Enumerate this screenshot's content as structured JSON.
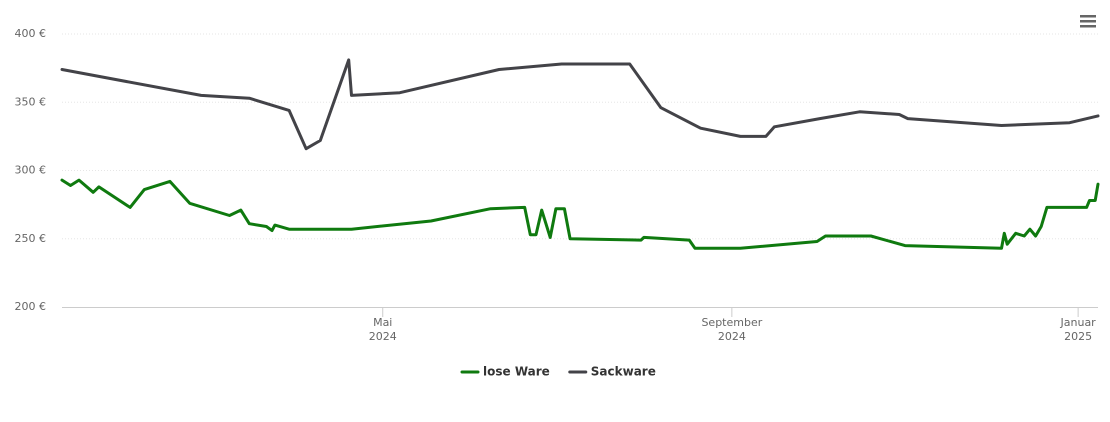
{
  "chart_data": {
    "type": "line",
    "xlim": [
      "2024-01-09",
      "2025-01-08"
    ],
    "xticks": [
      {
        "value": "2024-05-01",
        "label": [
          "Mai",
          "2024"
        ]
      },
      {
        "value": "2024-09-01",
        "label": [
          "September",
          "2024"
        ]
      },
      {
        "value": "2025-01-01",
        "label": [
          "Januar",
          "2025"
        ]
      }
    ],
    "ylim": [
      200,
      400
    ],
    "yticks": [
      {
        "value": 200,
        "label": "200 €"
      },
      {
        "value": 250,
        "label": "250 €"
      },
      {
        "value": 300,
        "label": "300 €"
      },
      {
        "value": 350,
        "label": "350 €"
      },
      {
        "value": 400,
        "label": "400 €"
      }
    ],
    "grid": true,
    "legend": "bottom",
    "series": [
      {
        "name": "lose Ware",
        "color": "#0f7a0f",
        "x": [
          "2024-01-09",
          "2024-01-12",
          "2024-01-15",
          "2024-01-20",
          "2024-01-22",
          "2024-02-02",
          "2024-02-07",
          "2024-02-16",
          "2024-02-23",
          "2024-03-08",
          "2024-03-12",
          "2024-03-15",
          "2024-03-21",
          "2024-03-23",
          "2024-03-24",
          "2024-03-29",
          "2024-04-20",
          "2024-05-18",
          "2024-06-08",
          "2024-06-20",
          "2024-06-22",
          "2024-06-24",
          "2024-06-26",
          "2024-06-29",
          "2024-07-01",
          "2024-07-04",
          "2024-07-06",
          "2024-07-31",
          "2024-08-01",
          "2024-08-17",
          "2024-08-19",
          "2024-09-04",
          "2024-10-01",
          "2024-10-04",
          "2024-10-20",
          "2024-11-01",
          "2024-12-05",
          "2024-12-06",
          "2024-12-07",
          "2024-12-10",
          "2024-12-13",
          "2024-12-15",
          "2024-12-17",
          "2024-12-19",
          "2024-12-21",
          "2025-01-04",
          "2025-01-05",
          "2025-01-07",
          "2025-01-08"
        ],
        "values": [
          293,
          289,
          293,
          284,
          288,
          273,
          286,
          292,
          276,
          267,
          271,
          261,
          259,
          256,
          260,
          257,
          257,
          263,
          272,
          273,
          253,
          253,
          271,
          251,
          272,
          272,
          250,
          249,
          251,
          249,
          243,
          243,
          248,
          252,
          252,
          245,
          243,
          254,
          246,
          254,
          252,
          257,
          252,
          259,
          273,
          273,
          278,
          278,
          290
        ]
      },
      {
        "name": "Sackware",
        "color": "#434348",
        "x": [
          "2024-01-09",
          "2024-02-27",
          "2024-03-15",
          "2024-03-29",
          "2024-04-04",
          "2024-04-09",
          "2024-04-19",
          "2024-04-20",
          "2024-05-07",
          "2024-06-11",
          "2024-07-03",
          "2024-07-27",
          "2024-08-07",
          "2024-08-21",
          "2024-09-04",
          "2024-09-13",
          "2024-09-16",
          "2024-10-02",
          "2024-10-16",
          "2024-10-30",
          "2024-11-02",
          "2024-12-05",
          "2024-12-29",
          "2025-01-08"
        ],
        "values": [
          374,
          355,
          353,
          344,
          316,
          322,
          381,
          355,
          357,
          374,
          378,
          378,
          346,
          331,
          325,
          325,
          332,
          338,
          343,
          341,
          338,
          333,
          335,
          340
        ]
      }
    ]
  }
}
